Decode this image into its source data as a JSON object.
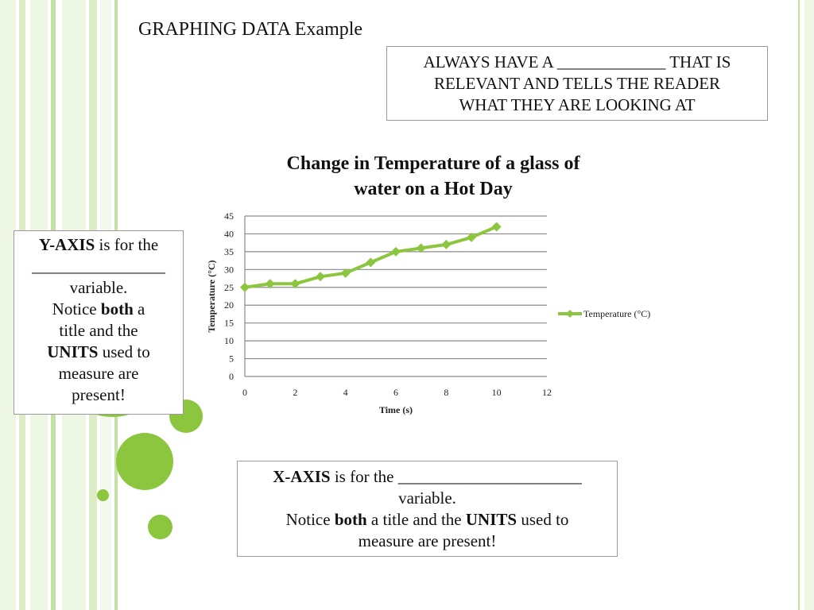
{
  "slide": {
    "title": "GRAPHING DATA Example",
    "colors": {
      "accent": "#8cc63f",
      "stripe_light": "#eef6e4",
      "stripe_mid": "#dcedc8",
      "stripe_dark": "#c5e1a5"
    }
  },
  "notes": {
    "top": {
      "line1": "ALWAYS HAVE A _____________ THAT IS",
      "line2": "RELEVANT AND TELLS THE READER",
      "line3": "WHAT THEY ARE LOOKING AT"
    },
    "y_axis": {
      "bold1": "Y-AXIS",
      "text1": " is for the",
      "blank": "________________",
      "text2": "variable.",
      "text3": "Notice ",
      "bold2": "both",
      "text4": " a",
      "text5": "title and the",
      "bold3": "UNITS",
      "text6": " used to",
      "text7": "measure are",
      "text8": "present!"
    },
    "x_axis": {
      "bold1": "X-AXIS",
      "text1": " is for the ______________________",
      "text2": "variable.",
      "text3": "Notice ",
      "bold2": "both",
      "text4": " a title and the ",
      "bold3": "UNITS",
      "text5": " used to",
      "text6": "measure are present!"
    }
  },
  "chart_data": {
    "type": "line",
    "title_line1": "Change in Temperature of a glass of",
    "title_line2": "water on a Hot Day",
    "xlabel": "Time (s)",
    "ylabel": "Temperature (°C)",
    "xlim": [
      0,
      12
    ],
    "ylim": [
      0,
      45
    ],
    "x_ticks": [
      0,
      2,
      4,
      6,
      8,
      10,
      12
    ],
    "y_ticks": [
      0,
      5,
      10,
      15,
      20,
      25,
      30,
      35,
      40,
      45
    ],
    "grid": "horizontal",
    "legend_position": "right",
    "series": [
      {
        "name": "Temperature (°C)",
        "color": "#8cc63f",
        "x": [
          0,
          1,
          2,
          3,
          4,
          5,
          6,
          7,
          8,
          9,
          10
        ],
        "y": [
          25,
          26,
          26,
          28,
          29,
          32,
          35,
          36,
          37,
          39,
          42
        ]
      }
    ]
  }
}
